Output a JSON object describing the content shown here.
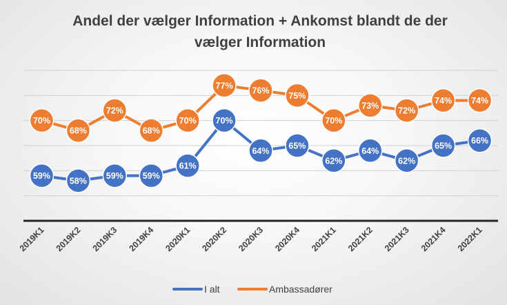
{
  "chart_data": {
    "type": "line",
    "title_lines": [
      "Andel der vælger Information + Ankomst blandt de der",
      "vælger Information"
    ],
    "categories": [
      "2019K1",
      "2019K2",
      "2019K3",
      "2019K4",
      "2020K1",
      "2020K2",
      "2020K3",
      "2020K4",
      "2021K1",
      "2021K2",
      "2021K3",
      "2021K4",
      "2022K1"
    ],
    "series": [
      {
        "name": "I alt",
        "color": "#4472C4",
        "values": [
          59,
          58,
          59,
          59,
          61,
          70,
          64,
          65,
          62,
          64,
          62,
          65,
          66
        ],
        "labels": [
          "59%",
          "58%",
          "59%",
          "59%",
          "61%",
          "70%",
          "64%",
          "65%",
          "62%",
          "64%",
          "62%",
          "65%",
          "66%"
        ]
      },
      {
        "name": "Ambassadører",
        "color": "#ED7D31",
        "values": [
          70,
          68,
          72,
          68,
          70,
          77,
          76,
          75,
          70,
          73,
          72,
          74,
          74
        ],
        "labels": [
          "70%",
          "68%",
          "72%",
          "68%",
          "70%",
          "77%",
          "76%",
          "75%",
          "70%",
          "73%",
          "72%",
          "74%",
          "74%"
        ]
      }
    ],
    "ylim": [
      50,
      80
    ],
    "grid": true,
    "y_axis_labels_shown": false,
    "legend_position": "bottom",
    "gridline_color": "#d0d0d0",
    "axis_color": "#262626"
  }
}
